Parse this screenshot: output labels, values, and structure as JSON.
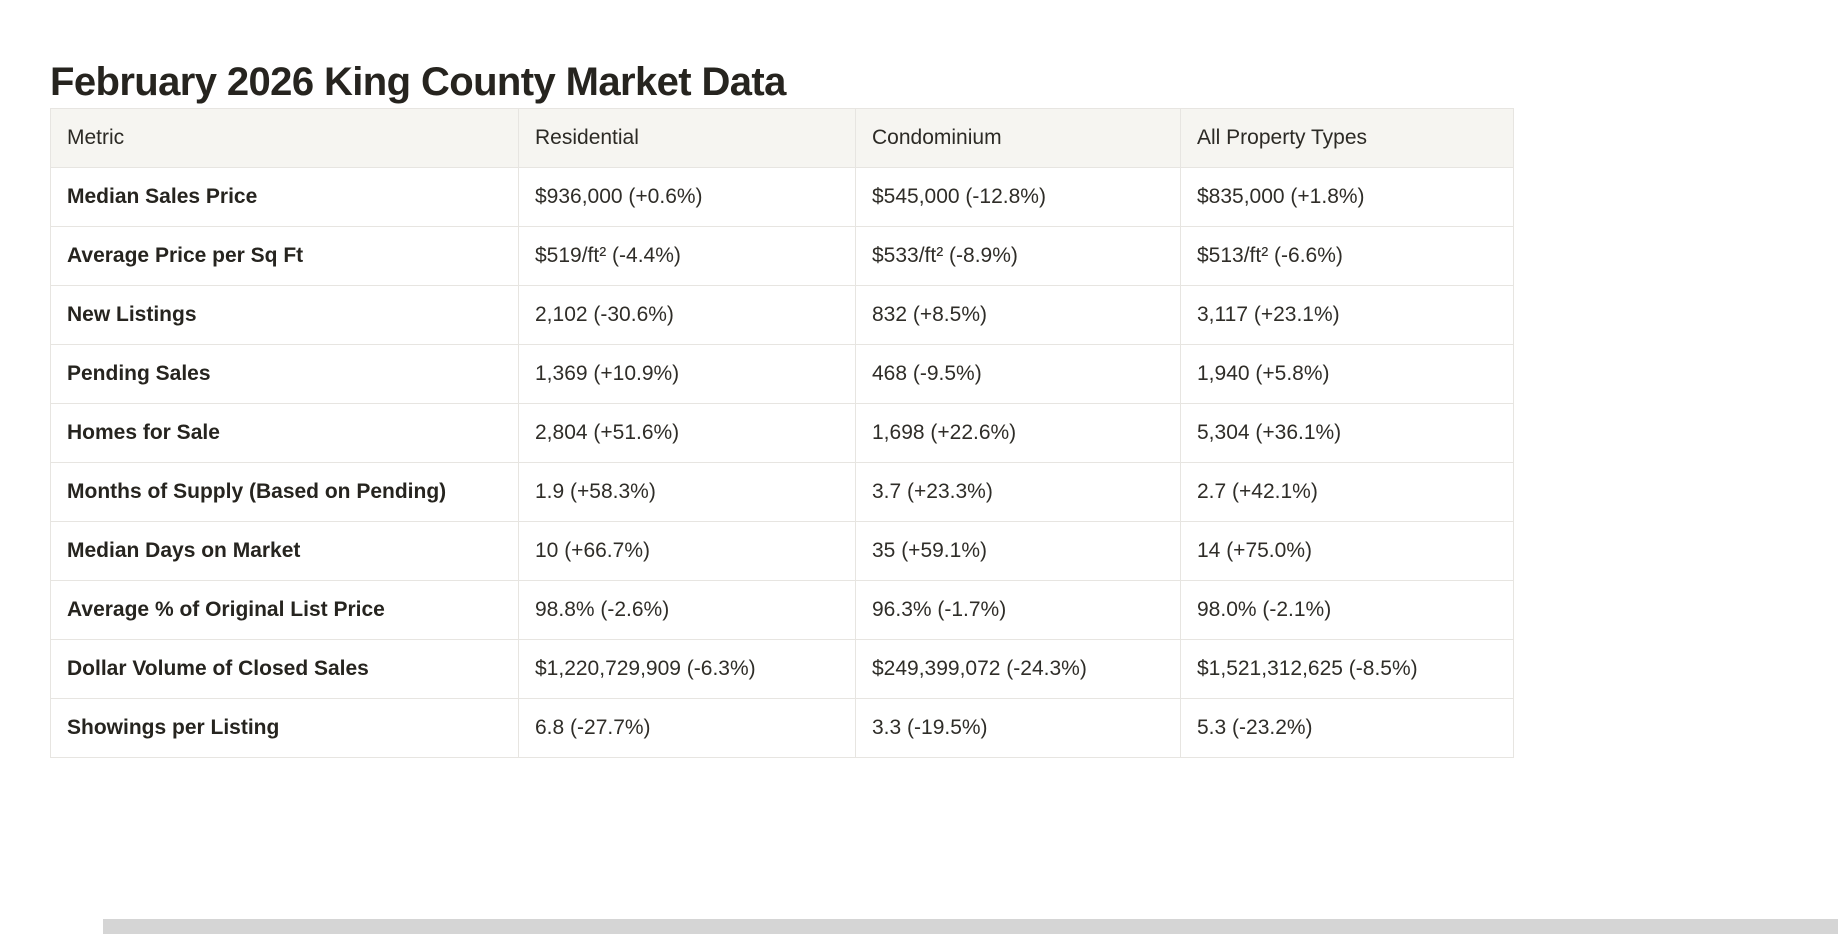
{
  "page": {
    "title": "February 2026 King County Market Data"
  },
  "table": {
    "headers": [
      "Metric",
      "Residential",
      "Condominium",
      "All Property Types"
    ],
    "rows": [
      {
        "metric": "Median Sales Price",
        "values": [
          "$936,000 (+0.6%)",
          "$545,000 (-12.8%)",
          "$835,000 (+1.8%)"
        ]
      },
      {
        "metric": "Average Price per Sq Ft",
        "values": [
          "$519/ft² (-4.4%)",
          "$533/ft² (-8.9%)",
          "$513/ft² (-6.6%)"
        ]
      },
      {
        "metric": "New Listings",
        "values": [
          "2,102 (-30.6%)",
          "832 (+8.5%)",
          "3,117 (+23.1%)"
        ]
      },
      {
        "metric": "Pending Sales",
        "values": [
          "1,369 (+10.9%)",
          "468 (-9.5%)",
          "1,940 (+5.8%)"
        ]
      },
      {
        "metric": "Homes for Sale",
        "values": [
          "2,804 (+51.6%)",
          "1,698 (+22.6%)",
          "5,304 (+36.1%)"
        ]
      },
      {
        "metric": "Months of Supply (Based on Pending)",
        "values": [
          "1.9 (+58.3%)",
          "3.7 (+23.3%)",
          "2.7 (+42.1%)"
        ]
      },
      {
        "metric": "Median Days on Market",
        "values": [
          "10 (+66.7%)",
          "35 (+59.1%)",
          "14 (+75.0%)"
        ]
      },
      {
        "metric": "Average % of Original List Price",
        "values": [
          "98.8% (-2.6%)",
          "96.3% (-1.7%)",
          "98.0% (-2.1%)"
        ]
      },
      {
        "metric": "Dollar Volume of Closed Sales",
        "values": [
          "$1,220,729,909 (-6.3%)",
          "$249,399,072 (-24.3%)",
          "$1,521,312,625 (-8.5%)"
        ]
      },
      {
        "metric": "Showings per Listing",
        "values": [
          "6.8 (-27.7%)",
          "3.3 (-19.5%)",
          "5.3 (-23.2%)"
        ]
      }
    ]
  },
  "colors": {
    "header_bg": "#f6f5f1",
    "border": "#e7e5e1",
    "text": "#2f2d28",
    "bottom_strip": "#d5d5d5"
  }
}
